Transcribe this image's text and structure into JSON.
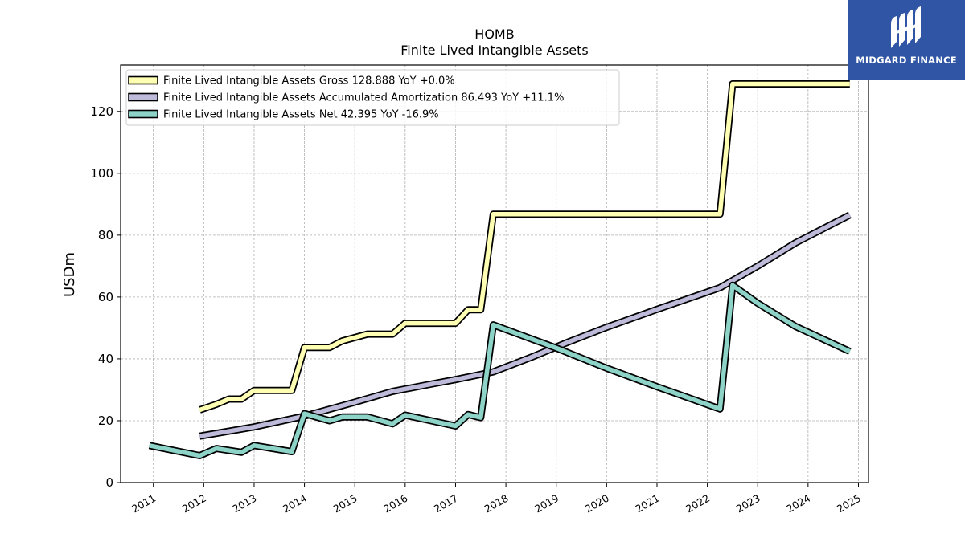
{
  "chart_data": {
    "type": "line",
    "title": "HOMB",
    "subtitle": "Finite Lived Intangible Assets",
    "ylabel": "USDm",
    "xlabel": "",
    "xlim": [
      2010.35,
      2025.2
    ],
    "ylim": [
      0,
      135
    ],
    "yticks": [
      0,
      20,
      40,
      60,
      80,
      100,
      120
    ],
    "xticks": [
      "2011",
      "2012",
      "2013",
      "2014",
      "2015",
      "2016",
      "2017",
      "2018",
      "2019",
      "2020",
      "2021",
      "2022",
      "2023",
      "2024",
      "2025"
    ],
    "grid": true,
    "legend_position": "top-left",
    "series": [
      {
        "name": "Finite Lived Intangible Assets Gross  128.888 YoY +0.0%",
        "color": "#ffffb3",
        "points": [
          [
            2011.92,
            23.5
          ],
          [
            2012.25,
            25.3
          ],
          [
            2012.5,
            27.0
          ],
          [
            2012.75,
            27.0
          ],
          [
            2013.0,
            29.8
          ],
          [
            2013.75,
            29.8
          ],
          [
            2014.0,
            43.7
          ],
          [
            2014.5,
            43.7
          ],
          [
            2014.75,
            45.8
          ],
          [
            2015.25,
            48.0
          ],
          [
            2015.75,
            48.0
          ],
          [
            2016.0,
            51.5
          ],
          [
            2017.0,
            51.5
          ],
          [
            2017.25,
            55.9
          ],
          [
            2017.5,
            55.9
          ],
          [
            2017.75,
            86.8
          ],
          [
            2022.25,
            86.8
          ],
          [
            2022.5,
            128.9
          ],
          [
            2024.83,
            128.9
          ]
        ]
      },
      {
        "name": "Finite Lived Intangible Assets Accumulated Amortization  86.493 YoY +11.1%",
        "color": "#bebada",
        "points": [
          [
            2011.92,
            15.0
          ],
          [
            2013.0,
            18.0
          ],
          [
            2014.0,
            21.5
          ],
          [
            2015.0,
            26.0
          ],
          [
            2015.75,
            29.5
          ],
          [
            2016.5,
            31.8
          ],
          [
            2017.0,
            33.3
          ],
          [
            2017.75,
            35.8
          ],
          [
            2018.5,
            40.5
          ],
          [
            2019.25,
            45.5
          ],
          [
            2020.0,
            50.2
          ],
          [
            2021.0,
            56.0
          ],
          [
            2022.25,
            63.0
          ],
          [
            2023.0,
            70.0
          ],
          [
            2023.75,
            77.5
          ],
          [
            2024.83,
            86.5
          ]
        ]
      },
      {
        "name": "Finite Lived Intangible Assets Net  42.395 YoY -16.9%",
        "color": "#8dd3c7",
        "points": [
          [
            2010.92,
            12.0
          ],
          [
            2011.92,
            8.7
          ],
          [
            2012.25,
            11.0
          ],
          [
            2012.75,
            9.8
          ],
          [
            2013.0,
            12.0
          ],
          [
            2013.75,
            10.0
          ],
          [
            2014.0,
            22.3
          ],
          [
            2014.5,
            20.0
          ],
          [
            2014.75,
            21.2
          ],
          [
            2015.25,
            21.2
          ],
          [
            2015.75,
            19.0
          ],
          [
            2016.0,
            21.8
          ],
          [
            2017.0,
            18.3
          ],
          [
            2017.25,
            22.0
          ],
          [
            2017.5,
            21.0
          ],
          [
            2017.75,
            51.0
          ],
          [
            2019.0,
            43.5
          ],
          [
            2020.0,
            37.0
          ],
          [
            2021.0,
            31.0
          ],
          [
            2022.25,
            23.8
          ],
          [
            2022.5,
            63.8
          ],
          [
            2023.0,
            58.0
          ],
          [
            2023.75,
            50.5
          ],
          [
            2024.83,
            42.4
          ]
        ]
      }
    ]
  },
  "logo": {
    "text": "MIDGARD FINANCE",
    "background": "#2f55a4",
    "icon": "midgard-logo-icon"
  }
}
